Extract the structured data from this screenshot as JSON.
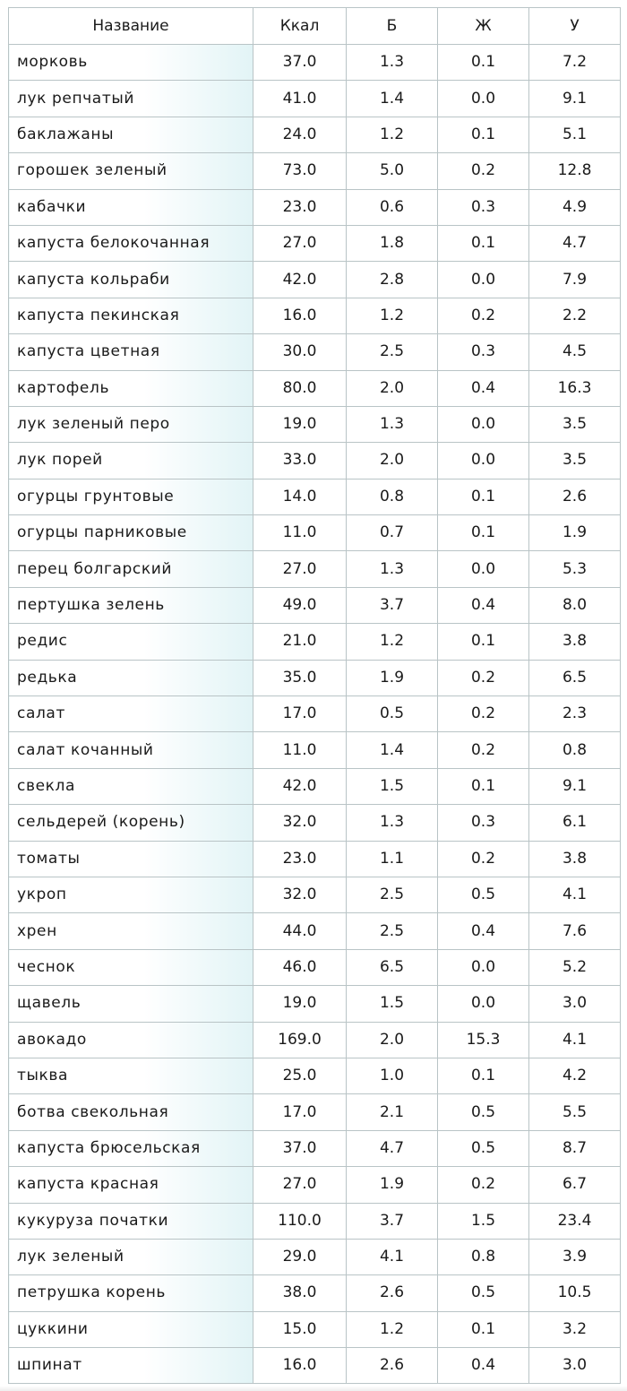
{
  "table": {
    "columns": [
      "Название",
      "Ккал",
      "Б",
      "Ж",
      "У"
    ],
    "rows": [
      [
        "морковь",
        "37.0",
        "1.3",
        "0.1",
        "7.2"
      ],
      [
        "лук репчатый",
        "41.0",
        "1.4",
        "0.0",
        "9.1"
      ],
      [
        "баклажаны",
        "24.0",
        "1.2",
        "0.1",
        "5.1"
      ],
      [
        "горошек зеленый",
        "73.0",
        "5.0",
        "0.2",
        "12.8"
      ],
      [
        "кабачки",
        "23.0",
        "0.6",
        "0.3",
        "4.9"
      ],
      [
        "капуста белокочанная",
        "27.0",
        "1.8",
        "0.1",
        "4.7"
      ],
      [
        "капуста кольраби",
        "42.0",
        "2.8",
        "0.0",
        "7.9"
      ],
      [
        "капуста пекинская",
        "16.0",
        "1.2",
        "0.2",
        "2.2"
      ],
      [
        "капуста цветная",
        "30.0",
        "2.5",
        "0.3",
        "4.5"
      ],
      [
        "картофель",
        "80.0",
        "2.0",
        "0.4",
        "16.3"
      ],
      [
        "лук зеленый перо",
        "19.0",
        "1.3",
        "0.0",
        "3.5"
      ],
      [
        "лук порей",
        "33.0",
        "2.0",
        "0.0",
        "3.5"
      ],
      [
        "огурцы грунтовые",
        "14.0",
        "0.8",
        "0.1",
        "2.6"
      ],
      [
        "огурцы парниковые",
        "11.0",
        "0.7",
        "0.1",
        "1.9"
      ],
      [
        "перец болгарский",
        "27.0",
        "1.3",
        "0.0",
        "5.3"
      ],
      [
        "пертушка зелень",
        "49.0",
        "3.7",
        "0.4",
        "8.0"
      ],
      [
        "редис",
        "21.0",
        "1.2",
        "0.1",
        "3.8"
      ],
      [
        "редька",
        "35.0",
        "1.9",
        "0.2",
        "6.5"
      ],
      [
        "салат",
        "17.0",
        "0.5",
        "0.2",
        "2.3"
      ],
      [
        "салат кочанный",
        "11.0",
        "1.4",
        "0.2",
        "0.8"
      ],
      [
        "свекла",
        "42.0",
        "1.5",
        "0.1",
        "9.1"
      ],
      [
        "сельдерей (корень)",
        "32.0",
        "1.3",
        "0.3",
        "6.1"
      ],
      [
        "томаты",
        "23.0",
        "1.1",
        "0.2",
        "3.8"
      ],
      [
        "укроп",
        "32.0",
        "2.5",
        "0.5",
        "4.1"
      ],
      [
        "хрен",
        "44.0",
        "2.5",
        "0.4",
        "7.6"
      ],
      [
        "чеснок",
        "46.0",
        "6.5",
        "0.0",
        "5.2"
      ],
      [
        "щавель",
        "19.0",
        "1.5",
        "0.0",
        "3.0"
      ],
      [
        "авокадо",
        "169.0",
        "2.0",
        "15.3",
        "4.1"
      ],
      [
        "тыква",
        "25.0",
        "1.0",
        "0.1",
        "4.2"
      ],
      [
        "ботва свекольная",
        "17.0",
        "2.1",
        "0.5",
        "5.5"
      ],
      [
        "капуста брюсельская",
        "37.0",
        "4.7",
        "0.5",
        "8.7"
      ],
      [
        "капуста красная",
        "27.0",
        "1.9",
        "0.2",
        "6.7"
      ],
      [
        "кукуруза початки",
        "110.0",
        "3.7",
        "1.5",
        "23.4"
      ],
      [
        "лук зеленый",
        "29.0",
        "4.1",
        "0.8",
        "3.9"
      ],
      [
        "петрушка корень",
        "38.0",
        "2.6",
        "0.5",
        "10.5"
      ],
      [
        "цуккини",
        "15.0",
        "1.2",
        "0.1",
        "3.2"
      ],
      [
        "шпинат",
        "16.0",
        "2.6",
        "0.4",
        "3.0"
      ]
    ]
  },
  "colors": {
    "border": "#b9c4c6",
    "name_cell_tint": "#e2f4f6",
    "text": "#1a1a1a"
  }
}
